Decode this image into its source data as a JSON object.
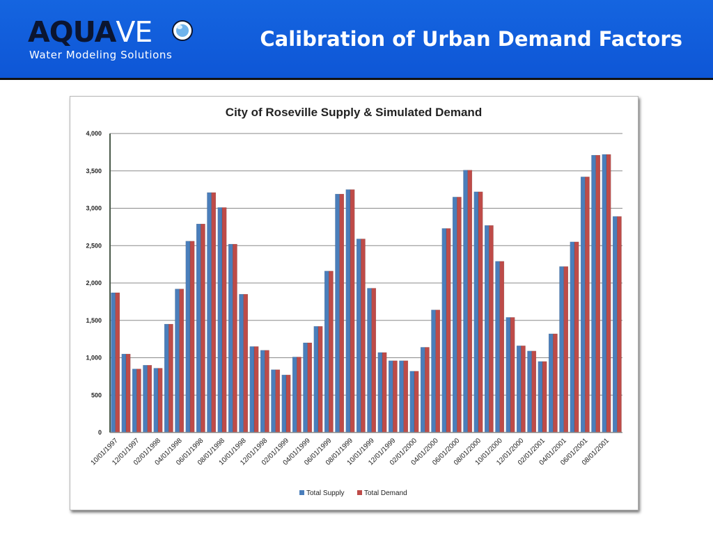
{
  "header": {
    "logo_text_dark": "AQUA",
    "logo_text_light": "VE",
    "logo_subtitle": "Water Modeling Solutions",
    "title": "Calibration of Urban Demand Factors",
    "banner_color": "#1161dc"
  },
  "chart_data": {
    "type": "bar",
    "title": "City of Roseville Supply & Simulated Demand",
    "xlabel": "",
    "ylabel": "",
    "ylim": [
      0,
      4000
    ],
    "yticks": [
      0,
      500,
      1000,
      1500,
      2000,
      2500,
      3000,
      3500,
      4000
    ],
    "ytick_labels": [
      "0",
      "500",
      "1,000",
      "1,500",
      "2,000",
      "2,500",
      "3,000",
      "3,500",
      "4,000"
    ],
    "grid": true,
    "legend_position": "bottom",
    "categories": [
      "10/01/1997",
      "11/01/1997",
      "12/01/1997",
      "01/01/1998",
      "02/01/1998",
      "03/01/1998",
      "04/01/1998",
      "05/01/1998",
      "06/01/1998",
      "07/01/1998",
      "08/01/1998",
      "09/01/1998",
      "10/01/1998",
      "11/01/1998",
      "12/01/1998",
      "01/01/1999",
      "02/01/1999",
      "03/01/1999",
      "04/01/1999",
      "05/01/1999",
      "06/01/1999",
      "07/01/1999",
      "08/01/1999",
      "09/01/1999",
      "10/01/1999",
      "11/01/1999",
      "12/01/1999",
      "01/01/2000",
      "02/01/2000",
      "03/01/2000",
      "04/01/2000",
      "05/01/2000",
      "06/01/2000",
      "07/01/2000",
      "08/01/2000",
      "09/01/2000",
      "10/01/2000",
      "11/01/2000",
      "12/01/2000",
      "01/01/2001",
      "02/01/2001",
      "03/01/2001",
      "04/01/2001",
      "05/01/2001",
      "06/01/2001",
      "07/01/2001",
      "08/01/2001",
      "09/01/2001"
    ],
    "tick_labels": [
      "10/01/1997",
      "12/01/1997",
      "02/01/1998",
      "04/01/1998",
      "06/01/1998",
      "08/01/1998",
      "10/01/1998",
      "12/01/1998",
      "02/01/1999",
      "04/01/1999",
      "06/01/1999",
      "08/01/1999",
      "10/01/1999",
      "12/01/1999",
      "02/01/2000",
      "04/01/2000",
      "06/01/2000",
      "08/01/2000",
      "10/01/2000",
      "12/01/2000",
      "02/01/2001",
      "04/01/2001",
      "06/01/2001",
      "08/01/2001"
    ],
    "series": [
      {
        "name": "Total Supply",
        "color": "#4a7ebb",
        "values": [
          1870,
          1050,
          850,
          900,
          860,
          1450,
          1920,
          2560,
          2790,
          3210,
          3010,
          2520,
          1850,
          1150,
          1100,
          840,
          770,
          1010,
          1200,
          1420,
          2160,
          3190,
          3250,
          2590,
          1930,
          1070,
          960,
          960,
          820,
          1140,
          1640,
          2730,
          3150,
          3510,
          3220,
          2770,
          2290,
          1540,
          1160,
          1090,
          950,
          1320,
          2220,
          2550,
          3420,
          3710,
          3720,
          2890
        ]
      },
      {
        "name": "Total Demand",
        "color": "#be4b48",
        "values": [
          1870,
          1050,
          850,
          900,
          860,
          1450,
          1920,
          2560,
          2790,
          3210,
          3010,
          2520,
          1850,
          1150,
          1100,
          840,
          770,
          1010,
          1200,
          1420,
          2160,
          3190,
          3250,
          2590,
          1930,
          1070,
          960,
          960,
          820,
          1140,
          1640,
          2730,
          3150,
          3510,
          3220,
          2770,
          2290,
          1540,
          1160,
          1090,
          950,
          1320,
          2220,
          2550,
          3420,
          3710,
          3720,
          2890
        ]
      }
    ]
  }
}
